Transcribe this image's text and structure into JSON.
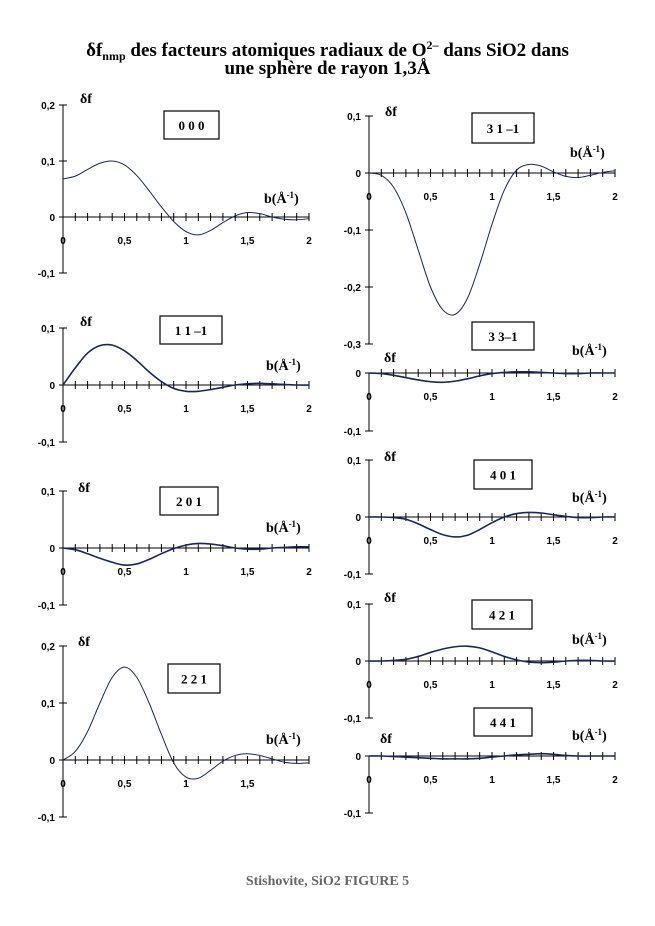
{
  "title": {
    "line1_prefix": "δf",
    "line1_sub": "nmp",
    "line1_mid": " des facteurs atomiques radiaux de O",
    "line1_sup": "2–",
    "line1_end": " dans SiO2 dans",
    "line2": "une sphère de rayon 1,3Å"
  },
  "caption": "Stishovite, SiO2  FIGURE 5",
  "chart_data": [
    {
      "type": "line",
      "label": "0 0 0",
      "ylabel": "δf",
      "xlabel": "b(Å-1)",
      "xlim": [
        0,
        2
      ],
      "ylim": [
        -0.1,
        0.2
      ],
      "yticks": [
        "0,2",
        "0,1",
        "0",
        "-0,1"
      ],
      "xticks": [
        "0",
        "0,5",
        "1",
        "1,5",
        "2"
      ],
      "x": [
        0,
        0.1,
        0.2,
        0.3,
        0.4,
        0.5,
        0.6,
        0.7,
        0.8,
        0.9,
        1.0,
        1.1,
        1.2,
        1.3,
        1.4,
        1.5,
        1.6,
        1.7,
        1.8,
        1.9,
        2.0
      ],
      "y": [
        0.068,
        0.073,
        0.085,
        0.096,
        0.1,
        0.093,
        0.074,
        0.047,
        0.018,
        -0.008,
        -0.026,
        -0.032,
        -0.024,
        -0.01,
        0.002,
        0.008,
        0.006,
        0.0,
        -0.004,
        -0.005,
        -0.003
      ]
    },
    {
      "type": "line",
      "label": "1 1 –1",
      "ylabel": "δf",
      "xlabel": "b(Å-1)",
      "xlim": [
        0,
        2
      ],
      "ylim": [
        -0.1,
        0.1
      ],
      "yticks": [
        "0,1",
        "0",
        "-0,1"
      ],
      "xticks": [
        "0",
        "0,5",
        "1",
        "1,5",
        "2"
      ],
      "x": [
        0,
        0.1,
        0.2,
        0.3,
        0.4,
        0.5,
        0.6,
        0.7,
        0.8,
        0.9,
        1.0,
        1.1,
        1.2,
        1.3,
        1.4,
        1.5,
        1.6,
        1.7,
        1.8,
        1.9,
        2.0
      ],
      "y": [
        0.0,
        0.03,
        0.056,
        0.069,
        0.07,
        0.06,
        0.043,
        0.023,
        0.006,
        -0.006,
        -0.011,
        -0.011,
        -0.008,
        -0.004,
        0.0,
        0.002,
        0.003,
        0.002,
        0.001,
        0.0,
        0.0
      ]
    },
    {
      "type": "line",
      "label": "2 0 1",
      "ylabel": "δf",
      "xlabel": "b(Å-1)",
      "xlim": [
        0,
        2
      ],
      "ylim": [
        -0.1,
        0.1
      ],
      "yticks": [
        "0,1",
        "0",
        "-0,1"
      ],
      "xticks": [
        "0",
        "0,5",
        "1",
        "1,5",
        "2"
      ],
      "x": [
        0,
        0.1,
        0.2,
        0.3,
        0.4,
        0.5,
        0.6,
        0.7,
        0.8,
        0.9,
        1.0,
        1.1,
        1.2,
        1.3,
        1.4,
        1.5,
        1.6,
        1.7,
        1.8,
        1.9,
        2.0
      ],
      "y": [
        0.0,
        -0.003,
        -0.01,
        -0.018,
        -0.025,
        -0.03,
        -0.028,
        -0.02,
        -0.01,
        -0.001,
        0.005,
        0.008,
        0.007,
        0.004,
        0.0,
        -0.002,
        -0.002,
        0.0,
        0.001,
        0.002,
        0.002
      ]
    },
    {
      "type": "line",
      "label": "2 2 1",
      "ylabel": "δf",
      "xlabel": "b(Å-1)",
      "xlim": [
        0,
        2
      ],
      "ylim": [
        -0.1,
        0.2
      ],
      "yticks": [
        "0,2",
        "0,1",
        "0",
        "-0,1"
      ],
      "xticks": [
        "0",
        "0,5",
        "1",
        "1,5"
      ],
      "x": [
        0,
        0.1,
        0.2,
        0.3,
        0.4,
        0.5,
        0.6,
        0.7,
        0.8,
        0.9,
        1.0,
        1.1,
        1.2,
        1.3,
        1.4,
        1.5,
        1.6,
        1.7,
        1.8,
        1.9,
        2.0
      ],
      "y": [
        0.0,
        0.015,
        0.05,
        0.1,
        0.145,
        0.163,
        0.145,
        0.1,
        0.045,
        -0.005,
        -0.03,
        -0.032,
        -0.018,
        -0.002,
        0.008,
        0.011,
        0.008,
        0.002,
        -0.004,
        -0.006,
        -0.005
      ]
    },
    {
      "type": "line",
      "label": "3 1 –1",
      "ylabel": "δf",
      "xlabel": "b(Å-1)",
      "xlim": [
        0,
        2
      ],
      "ylim": [
        -0.3,
        0.1
      ],
      "yticks": [
        "0,1",
        "0",
        "-0,1",
        "-0,2",
        "-0,3"
      ],
      "xticks": [
        "0",
        "0,5",
        "1",
        "1,5",
        "2"
      ],
      "x": [
        0,
        0.1,
        0.2,
        0.3,
        0.4,
        0.5,
        0.6,
        0.7,
        0.8,
        0.9,
        1.0,
        1.1,
        1.2,
        1.3,
        1.4,
        1.5,
        1.6,
        1.7,
        1.8,
        1.9,
        2.0
      ],
      "y": [
        0.0,
        -0.004,
        -0.025,
        -0.07,
        -0.135,
        -0.2,
        -0.24,
        -0.248,
        -0.22,
        -0.16,
        -0.09,
        -0.03,
        0.005,
        0.015,
        0.012,
        0.002,
        -0.006,
        -0.008,
        -0.004,
        0.001,
        0.004
      ]
    },
    {
      "type": "line",
      "label": "3 3–1",
      "ylabel": "δf",
      "xlabel": "b(Å-1)",
      "xlim": [
        0,
        2
      ],
      "ylim": [
        -0.1,
        0.0
      ],
      "yticks": [
        "0",
        "-0,1"
      ],
      "xticks": [
        "0",
        "0,5",
        "1",
        "1,5",
        "2"
      ],
      "x": [
        0,
        0.1,
        0.2,
        0.3,
        0.4,
        0.5,
        0.6,
        0.7,
        0.8,
        0.9,
        1.0,
        1.1,
        1.2,
        1.3,
        1.4,
        1.5,
        1.6,
        1.7,
        1.8,
        1.9,
        2.0
      ],
      "y": [
        0.0,
        -0.001,
        -0.004,
        -0.008,
        -0.012,
        -0.015,
        -0.016,
        -0.014,
        -0.01,
        -0.005,
        -0.001,
        0.001,
        0.002,
        0.002,
        0.001,
        0.0,
        -0.001,
        -0.001,
        0.0,
        0.0,
        0.0
      ]
    },
    {
      "type": "line",
      "label": "4 0 1",
      "ylabel": "δf",
      "xlabel": "b(Å-1)",
      "xlim": [
        0,
        2
      ],
      "ylim": [
        -0.1,
        0.1
      ],
      "yticks": [
        "0,1",
        "0",
        "-0,1"
      ],
      "xticks": [
        "0",
        "0,5",
        "1",
        "1,5",
        "2"
      ],
      "x": [
        0,
        0.1,
        0.2,
        0.3,
        0.4,
        0.5,
        0.6,
        0.7,
        0.8,
        0.9,
        1.0,
        1.1,
        1.2,
        1.3,
        1.4,
        1.5,
        1.6,
        1.7,
        1.8,
        1.9,
        2.0
      ],
      "y": [
        0.0,
        0.0,
        -0.001,
        -0.004,
        -0.012,
        -0.022,
        -0.031,
        -0.035,
        -0.032,
        -0.022,
        -0.01,
        0.0,
        0.006,
        0.008,
        0.007,
        0.004,
        0.001,
        -0.001,
        -0.001,
        0.0,
        0.0
      ]
    },
    {
      "type": "line",
      "label": "4 2 1",
      "ylabel": "δf",
      "xlabel": "b(Å-1)",
      "xlim": [
        0,
        2
      ],
      "ylim": [
        -0.1,
        0.1
      ],
      "yticks": [
        "0,1",
        "0",
        "-0,1"
      ],
      "xticks": [
        "0",
        "0,5",
        "1",
        "1,5",
        "2"
      ],
      "x": [
        0,
        0.1,
        0.2,
        0.3,
        0.4,
        0.5,
        0.6,
        0.7,
        0.8,
        0.9,
        1.0,
        1.1,
        1.2,
        1.3,
        1.4,
        1.5,
        1.6,
        1.7,
        1.8,
        1.9,
        2.0
      ],
      "y": [
        0.0,
        0.0,
        0.001,
        0.003,
        0.008,
        0.015,
        0.021,
        0.025,
        0.026,
        0.023,
        0.016,
        0.008,
        0.002,
        -0.002,
        -0.003,
        -0.002,
        0.0,
        0.001,
        0.001,
        0.0,
        0.0
      ]
    },
    {
      "type": "line",
      "label": "4 4 1",
      "ylabel": "δf",
      "xlabel": "b(Å-1)",
      "xlim": [
        0,
        2
      ],
      "ylim": [
        -0.1,
        0.0
      ],
      "yticks": [
        "0",
        "-0,1"
      ],
      "xticks": [
        "0",
        "0,5",
        "1",
        "1,5",
        "2"
      ],
      "x": [
        0,
        0.1,
        0.2,
        0.3,
        0.4,
        0.5,
        0.6,
        0.7,
        0.8,
        0.9,
        1.0,
        1.1,
        1.2,
        1.3,
        1.4,
        1.5,
        1.6,
        1.7,
        1.8,
        1.9,
        2.0
      ],
      "y": [
        0.0,
        0.0,
        -0.001,
        -0.002,
        -0.003,
        -0.004,
        -0.005,
        -0.005,
        -0.005,
        -0.004,
        -0.002,
        0.0,
        0.002,
        0.003,
        0.004,
        0.003,
        0.001,
        0.0,
        0.0,
        0.0,
        0.0
      ]
    }
  ]
}
